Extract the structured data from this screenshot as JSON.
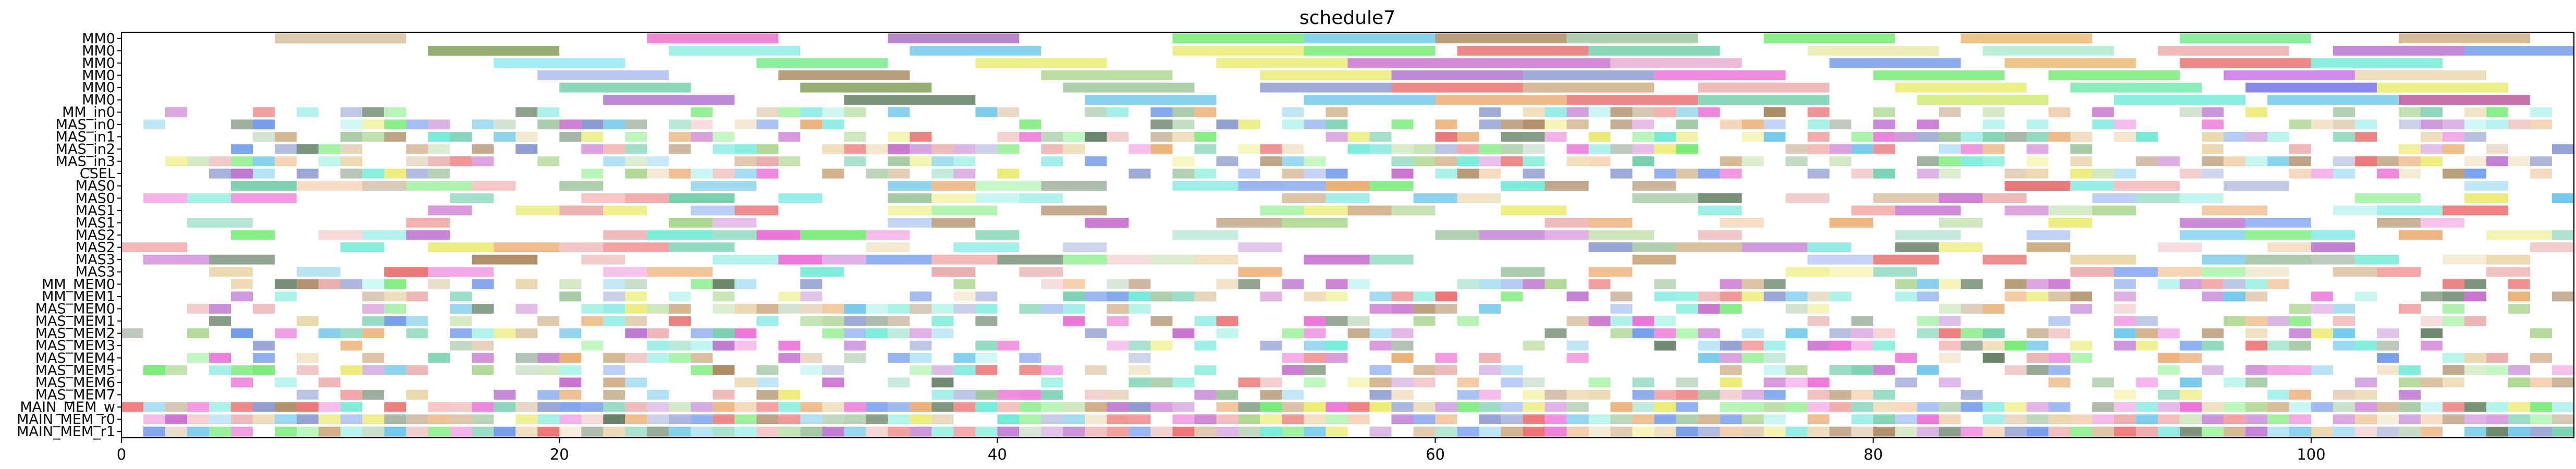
{
  "chart_data": {
    "type": "gantt",
    "title": "schedule7",
    "xlabel": "",
    "ylabel": "",
    "xlim": [
      0,
      112
    ],
    "xticks": [
      0,
      20,
      40,
      60,
      80,
      100
    ],
    "grid": false,
    "rows": [
      "MM0",
      "MM0",
      "MM0",
      "MM0",
      "MM0",
      "MM0",
      "MM_in0",
      "MAS_in0",
      "MAS_in1",
      "MAS_in2",
      "MAS_in3",
      "CSEL",
      "MAS0",
      "MAS0",
      "MAS1",
      "MAS1",
      "MAS2",
      "MAS2",
      "MAS3",
      "MAS3",
      "MM_MEM0",
      "MM_MEM1",
      "MAS_MEM0",
      "MAS_MEM1",
      "MAS_MEM2",
      "MAS_MEM3",
      "MAS_MEM4",
      "MAS_MEM5",
      "MAS_MEM6",
      "MAS_MEM7",
      "MAIN_MEM_w",
      "MAIN_MEM_r0",
      "MAIN_MEM_r1"
    ],
    "tasks": [
      {
        "row": 0,
        "start": 7,
        "end": 13,
        "color": "#d2b48c"
      },
      {
        "row": 0,
        "start": 24,
        "end": 30,
        "color": "#e85cc6"
      },
      {
        "row": 0,
        "start": 35,
        "end": 41,
        "color": "#9b59b6"
      },
      {
        "row": 0,
        "start": 48,
        "end": 54,
        "color": "#5ee85e"
      },
      {
        "row": 0,
        "start": 54,
        "end": 60,
        "color": "#5cc0e8"
      },
      {
        "row": 0,
        "start": 60,
        "end": 66,
        "color": "#a0784a"
      },
      {
        "row": 0,
        "start": 66,
        "end": 72,
        "color": "#8fbc8f"
      },
      {
        "row": 0,
        "start": 75,
        "end": 81,
        "color": "#5ee85e"
      },
      {
        "row": 0,
        "start": 84,
        "end": 90,
        "color": "#e8b05c"
      },
      {
        "row": 0,
        "start": 94,
        "end": 100,
        "color": "#5ee87a"
      },
      {
        "row": 0,
        "start": 104,
        "end": 110,
        "color": "#c8a070"
      },
      {
        "row": 1,
        "start": 14,
        "end": 20,
        "color": "#6b8e3d"
      },
      {
        "row": 1,
        "start": 25,
        "end": 31,
        "color": "#7ee8e0"
      },
      {
        "row": 1,
        "start": 36,
        "end": 42,
        "color": "#5cc0e8"
      },
      {
        "row": 1,
        "start": 48,
        "end": 54,
        "color": "#e8e85c"
      },
      {
        "row": 1,
        "start": 54,
        "end": 60,
        "color": "#5ee85e"
      },
      {
        "row": 1,
        "start": 61,
        "end": 67,
        "color": "#e85c5c"
      },
      {
        "row": 1,
        "start": 67,
        "end": 73,
        "color": "#5ec8a0"
      },
      {
        "row": 1,
        "start": 77,
        "end": 83,
        "color": "#e8e8a0"
      },
      {
        "row": 1,
        "start": 85,
        "end": 91,
        "color": "#a0e8c8"
      },
      {
        "row": 1,
        "start": 93,
        "end": 99,
        "color": "#e8a0a0"
      },
      {
        "row": 1,
        "start": 101,
        "end": 107,
        "color": "#b05cc8"
      },
      {
        "row": 1,
        "start": 107,
        "end": 112,
        "color": "#5c8ae8"
      },
      {
        "row": 2,
        "start": 17,
        "end": 23,
        "color": "#7ee8f0"
      },
      {
        "row": 2,
        "start": 29,
        "end": 35,
        "color": "#5ee87a"
      },
      {
        "row": 2,
        "start": 39,
        "end": 45,
        "color": "#e8e85c"
      },
      {
        "row": 2,
        "start": 50,
        "end": 56,
        "color": "#e8e85c"
      },
      {
        "row": 2,
        "start": 56,
        "end": 62,
        "color": "#c05cc8"
      },
      {
        "row": 2,
        "start": 62,
        "end": 68,
        "color": "#c05cc8"
      },
      {
        "row": 2,
        "start": 68,
        "end": 74,
        "color": "#e8a0c8"
      },
      {
        "row": 2,
        "start": 78,
        "end": 84,
        "color": "#5c8ae8"
      },
      {
        "row": 2,
        "start": 86,
        "end": 92,
        "color": "#e8b05c"
      },
      {
        "row": 2,
        "start": 94,
        "end": 100,
        "color": "#e85c5c"
      },
      {
        "row": 2,
        "start": 100,
        "end": 106,
        "color": "#5ce8d0"
      },
      {
        "row": 3,
        "start": 19,
        "end": 25,
        "color": "#a0b0e8"
      },
      {
        "row": 3,
        "start": 30,
        "end": 36,
        "color": "#a0784a"
      },
      {
        "row": 3,
        "start": 42,
        "end": 48,
        "color": "#a0d080"
      },
      {
        "row": 3,
        "start": 52,
        "end": 58,
        "color": "#e8e85c"
      },
      {
        "row": 3,
        "start": 58,
        "end": 64,
        "color": "#a05cc8"
      },
      {
        "row": 3,
        "start": 64,
        "end": 70,
        "color": "#7a8ac8"
      },
      {
        "row": 3,
        "start": 70,
        "end": 76,
        "color": "#e85cd0"
      },
      {
        "row": 3,
        "start": 80,
        "end": 86,
        "color": "#5ee85e"
      },
      {
        "row": 3,
        "start": 88,
        "end": 94,
        "color": "#5ee85e"
      },
      {
        "row": 3,
        "start": 96,
        "end": 102,
        "color": "#c05ce8"
      },
      {
        "row": 3,
        "start": 102,
        "end": 108,
        "color": "#e8d0a0"
      },
      {
        "row": 4,
        "start": 20,
        "end": 26,
        "color": "#5ec8a0"
      },
      {
        "row": 4,
        "start": 31,
        "end": 37,
        "color": "#6b8e3d"
      },
      {
        "row": 4,
        "start": 43,
        "end": 49,
        "color": "#8fbc8f"
      },
      {
        "row": 4,
        "start": 52,
        "end": 58,
        "color": "#7a8ac8"
      },
      {
        "row": 4,
        "start": 58,
        "end": 64,
        "color": "#e85c5c"
      },
      {
        "row": 4,
        "start": 64,
        "end": 70,
        "color": "#c8a070"
      },
      {
        "row": 4,
        "start": 72,
        "end": 78,
        "color": "#e8a0a0"
      },
      {
        "row": 4,
        "start": 81,
        "end": 87,
        "color": "#e8e85c"
      },
      {
        "row": 4,
        "start": 89,
        "end": 95,
        "color": "#5ee8a0"
      },
      {
        "row": 4,
        "start": 97,
        "end": 103,
        "color": "#5c5ce8"
      },
      {
        "row": 4,
        "start": 103,
        "end": 109,
        "color": "#e8e85c"
      },
      {
        "row": 5,
        "start": 22,
        "end": 28,
        "color": "#a05cc8"
      },
      {
        "row": 5,
        "start": 33,
        "end": 39,
        "color": "#4a6a4a"
      },
      {
        "row": 5,
        "start": 44,
        "end": 50,
        "color": "#5cc0e8"
      },
      {
        "row": 5,
        "start": 54,
        "end": 60,
        "color": "#5cc0e8"
      },
      {
        "row": 5,
        "start": 60,
        "end": 66,
        "color": "#e8a05c"
      },
      {
        "row": 5,
        "start": 66,
        "end": 72,
        "color": "#e85c5c"
      },
      {
        "row": 5,
        "start": 72,
        "end": 78,
        "color": "#5ec8a0"
      },
      {
        "row": 5,
        "start": 82,
        "end": 88,
        "color": "#c8e85c"
      },
      {
        "row": 5,
        "start": 91,
        "end": 97,
        "color": "#5ce8d0"
      },
      {
        "row": 5,
        "start": 98,
        "end": 104,
        "color": "#5cc0e8"
      },
      {
        "row": 5,
        "start": 104,
        "end": 110,
        "color": "#b03c8a"
      }
    ],
    "filler_rows": {
      "start": 6,
      "end": 32,
      "xmin": 0,
      "xmax": 112,
      "seed": 7
    }
  }
}
